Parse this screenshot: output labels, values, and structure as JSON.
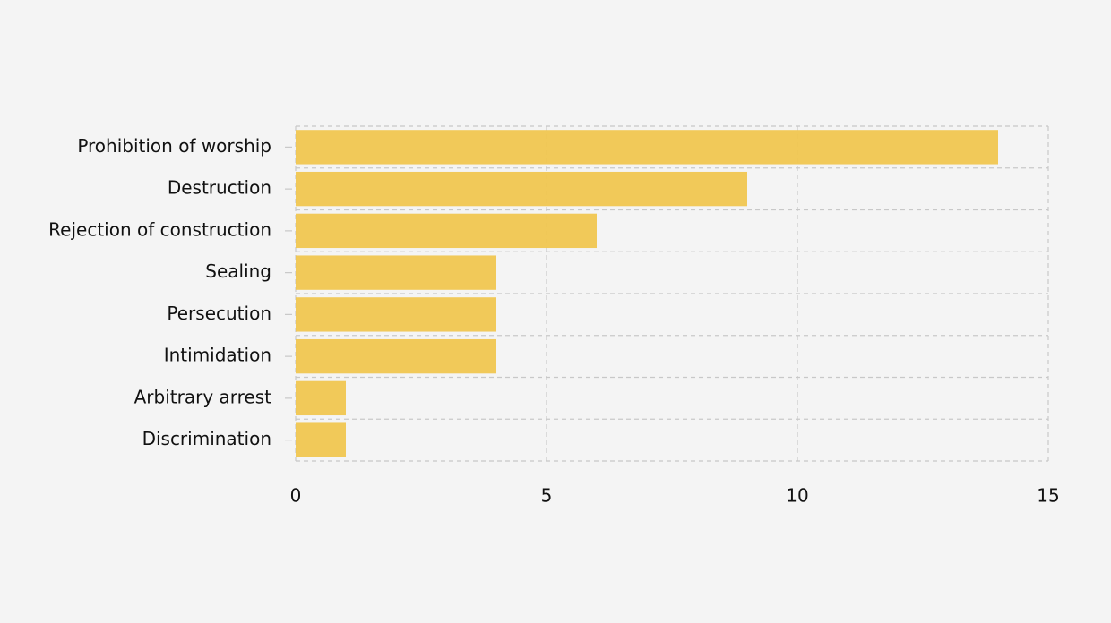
{
  "chart_data": {
    "type": "bar",
    "orientation": "horizontal",
    "categories": [
      "Prohibition of worship",
      "Destruction",
      "Rejection of construction",
      "Sealing",
      "Persecution",
      "Intimidation",
      "Arbitrary arrest",
      "Discrimination"
    ],
    "values": [
      14,
      9,
      6,
      4,
      4,
      4,
      1,
      1
    ],
    "color": "#f0c650",
    "xlim": [
      0,
      15
    ],
    "xticks": [
      0,
      5,
      10,
      15
    ],
    "grid": true
  }
}
